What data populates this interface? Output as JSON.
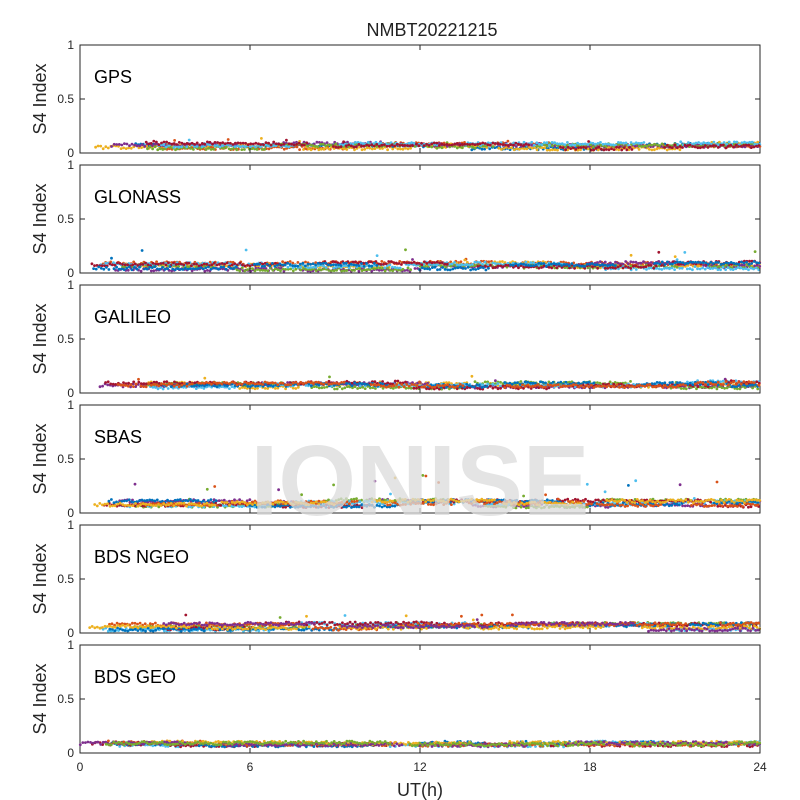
{
  "chart_data": {
    "type": "scatter",
    "title": "NMBT20221215",
    "xlabel": "UT(h)",
    "ylabel": "S4 Index",
    "xlim": [
      0,
      24
    ],
    "ylim": [
      0,
      1
    ],
    "x_ticks": [
      "0",
      "6",
      "12",
      "18",
      "24"
    ],
    "y_ticks": [
      "0",
      "0.5",
      "1"
    ],
    "watermark": "IONISE",
    "colors": [
      "#0072BD",
      "#D95319",
      "#EDB120",
      "#7E2F8E",
      "#77AC30",
      "#4DBEEE",
      "#A2142F"
    ],
    "panels": [
      {
        "label": "GPS",
        "baseline": [
          0.04,
          0.09
        ],
        "spike_max": 0.14
      },
      {
        "label": "GLONASS",
        "baseline": [
          0.03,
          0.1
        ],
        "spike_max": 0.22
      },
      {
        "label": "GALILEO",
        "baseline": [
          0.05,
          0.1
        ],
        "spike_max": 0.17
      },
      {
        "label": "SBAS",
        "baseline": [
          0.06,
          0.12
        ],
        "spike_max": 0.35
      },
      {
        "label": "BDS NGEO",
        "baseline": [
          0.03,
          0.09
        ],
        "spike_max": 0.21
      },
      {
        "label": "BDS GEO",
        "baseline": [
          0.07,
          0.1
        ],
        "spike_max": 0.1
      }
    ]
  }
}
